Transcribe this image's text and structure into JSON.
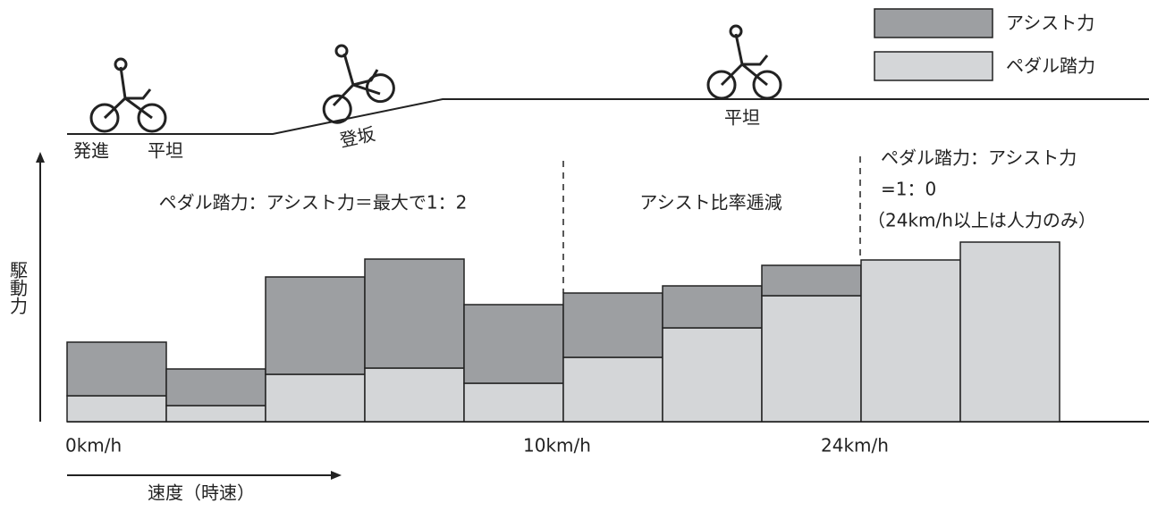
{
  "chart_data": {
    "type": "bar",
    "stacked": true,
    "y_label": "駆動力",
    "x_label": "速度（時速）",
    "categories": [
      null,
      null,
      null,
      null,
      null,
      null,
      null,
      null,
      null,
      null
    ],
    "series": [
      {
        "name": "アシスト力",
        "color": "#9d9fa2",
        "values": [
          60,
          41,
          109,
          122,
          88,
          72,
          47,
          34,
          0,
          0
        ]
      },
      {
        "name": "ペダル踏力",
        "color": "#d4d6d8",
        "values": [
          29,
          18,
          53,
          60,
          43,
          72,
          105,
          141,
          181,
          201
        ]
      }
    ],
    "ylim": [
      0,
      300
    ],
    "speed_labels": [
      "0km/h",
      "10km/h",
      "24km/h"
    ],
    "terrain_labels": [
      "発進",
      "平坦",
      "登坂",
      "平坦"
    ],
    "annotations": [
      "ペダル踏力：アシスト力＝最大で1：2",
      "アシスト比率逓減",
      "ペダル踏力：アシスト力",
      "=1：0",
      "（24km/h以上は人力のみ）"
    ]
  }
}
